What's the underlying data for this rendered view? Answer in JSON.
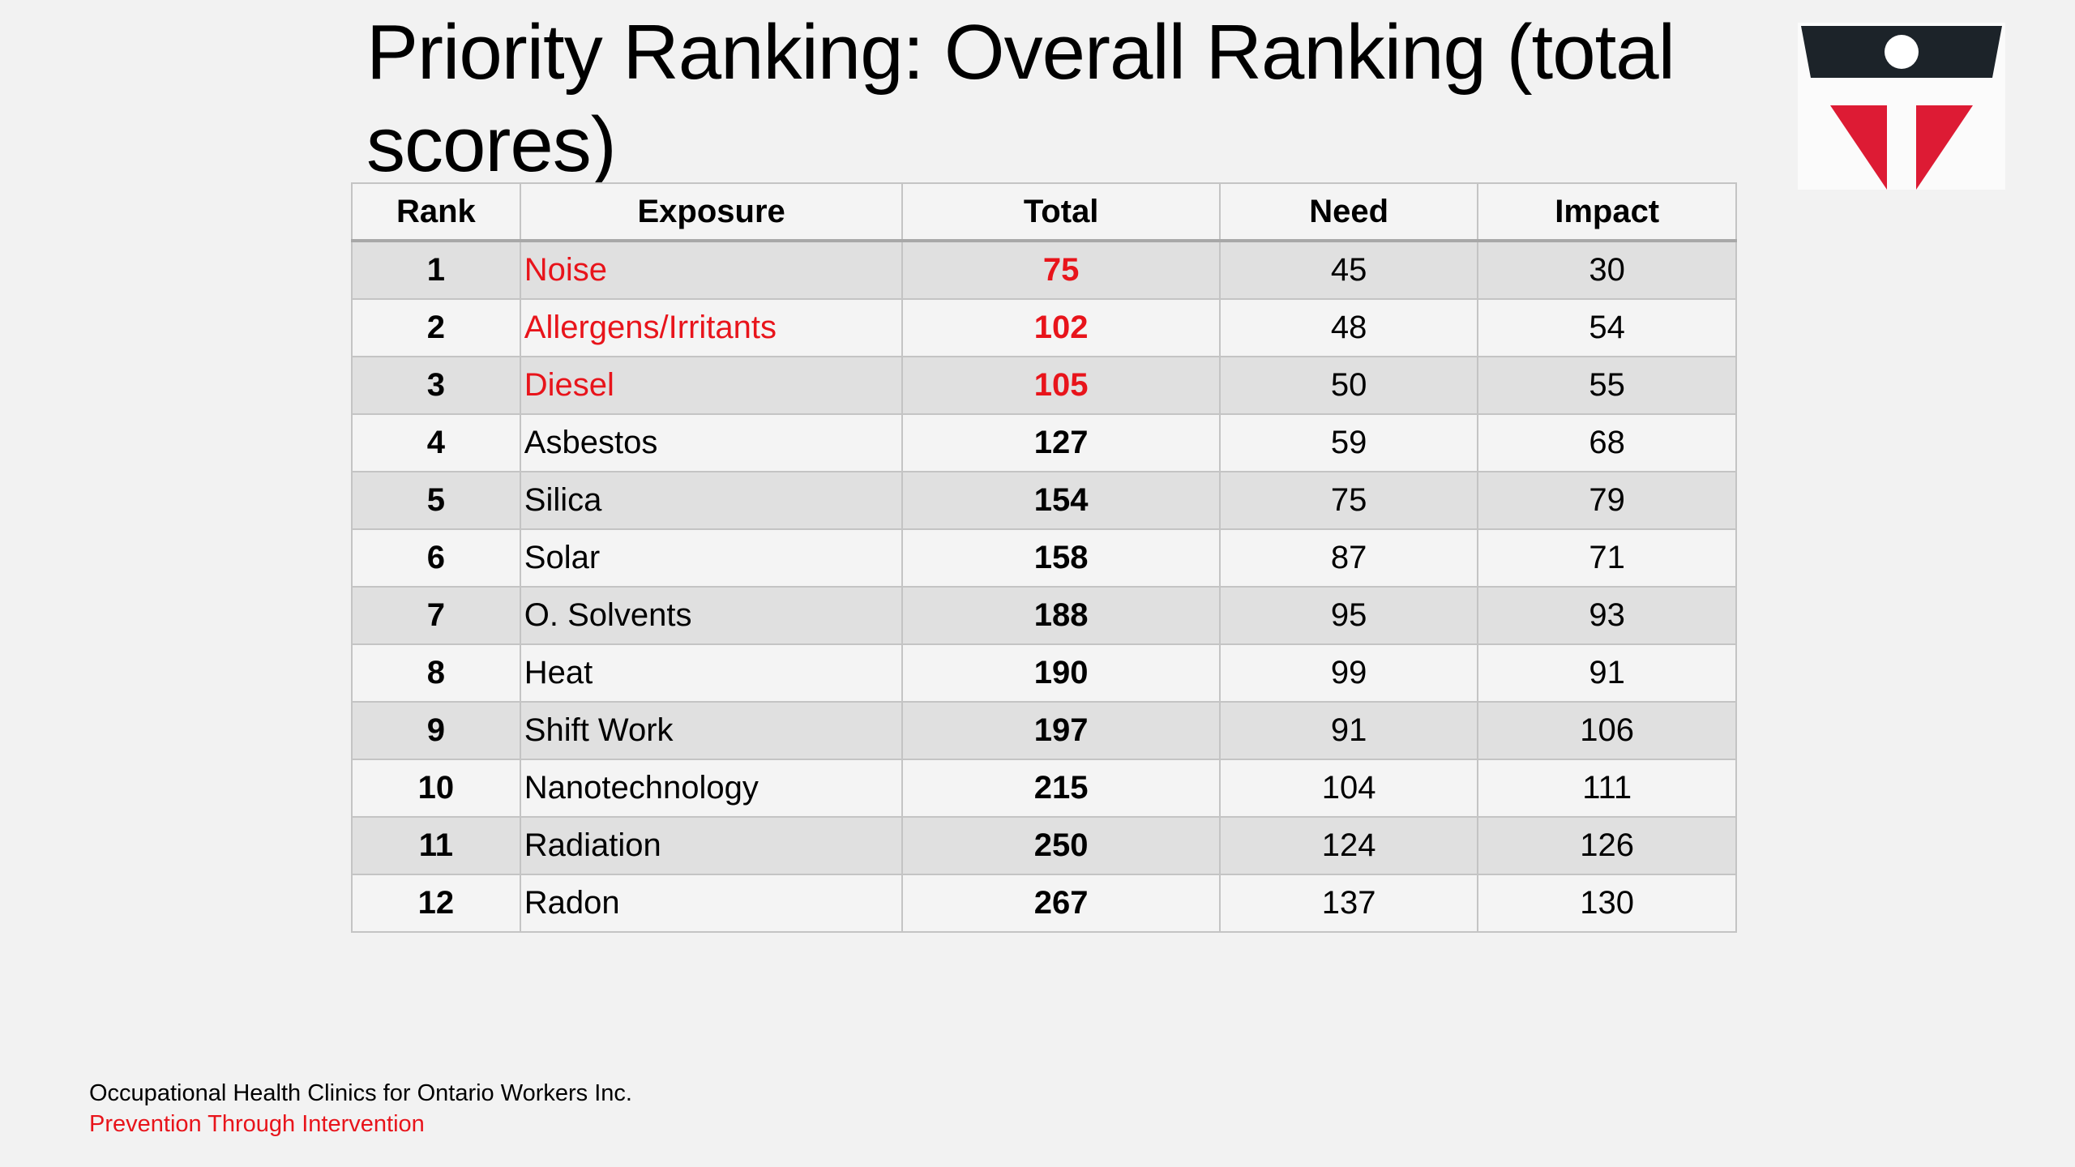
{
  "title": "Priority Ranking: Overall Ranking (total scores)",
  "table": {
    "headers": {
      "rank": "Rank",
      "exposure": "Exposure",
      "total": "Total",
      "need": "Need",
      "impact": "Impact"
    },
    "rows": [
      {
        "rank": "1",
        "exposure": "Noise",
        "total": "75",
        "need": "45",
        "impact": "30",
        "highlight": true
      },
      {
        "rank": "2",
        "exposure": "Allergens/Irritants",
        "total": "102",
        "need": "48",
        "impact": "54",
        "highlight": true
      },
      {
        "rank": "3",
        "exposure": "Diesel",
        "total": "105",
        "need": "50",
        "impact": "55",
        "highlight": true
      },
      {
        "rank": "4",
        "exposure": "Asbestos",
        "total": "127",
        "need": "59",
        "impact": "68",
        "highlight": false
      },
      {
        "rank": "5",
        "exposure": "Silica",
        "total": "154",
        "need": "75",
        "impact": "79",
        "highlight": false
      },
      {
        "rank": "6",
        "exposure": "Solar",
        "total": "158",
        "need": "87",
        "impact": "71",
        "highlight": false
      },
      {
        "rank": "7",
        "exposure": "O. Solvents",
        "total": "188",
        "need": "95",
        "impact": "93",
        "highlight": false
      },
      {
        "rank": "8",
        "exposure": "Heat",
        "total": "190",
        "need": "99",
        "impact": "91",
        "highlight": false
      },
      {
        "rank": "9",
        "exposure": "Shift Work",
        "total": "197",
        "need": "91",
        "impact": "106",
        "highlight": false
      },
      {
        "rank": "10",
        "exposure": "Nanotechnology",
        "total": "215",
        "need": "104",
        "impact": "111",
        "highlight": false
      },
      {
        "rank": "11",
        "exposure": "Radiation",
        "total": "250",
        "need": "124",
        "impact": "126",
        "highlight": false
      },
      {
        "rank": "12",
        "exposure": "Radon",
        "total": "267",
        "need": "137",
        "impact": "130",
        "highlight": false
      }
    ]
  },
  "footer": {
    "organization": "Occupational Health Clinics for Ontario Workers Inc.",
    "tagline": "Prevention Through Intervention"
  },
  "colors": {
    "highlight": "#e8141b",
    "logo_dark": "#1c2329",
    "logo_red": "#dd1b34"
  },
  "icons": {
    "logo": "ohcow-logo-icon"
  }
}
